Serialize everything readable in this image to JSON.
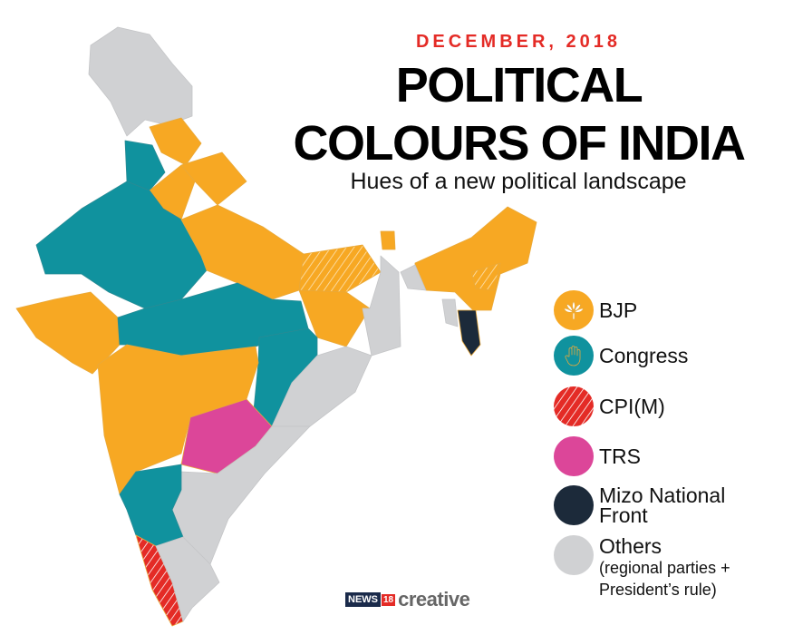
{
  "header": {
    "date": "DECEMBER, 2018",
    "title_line1": "POLITICAL",
    "title_line2": "COLOURS OF INDIA",
    "subtitle": "Hues of a new political landscape"
  },
  "legend": [
    {
      "label": "BJP",
      "color": "#f7a823",
      "icon": "lotus-icon"
    },
    {
      "label": "Congress",
      "color": "#10929e",
      "icon": "hand-icon"
    },
    {
      "label": "CPI(M)",
      "color": "#e42b26",
      "pattern": "hatched"
    },
    {
      "label": "TRS",
      "color": "#dc4699"
    },
    {
      "label": "Mizo National Front",
      "color": "#1c2a3a"
    },
    {
      "label": "Others",
      "note": "(regional parties + President’s rule)",
      "color": "#d0d1d3"
    }
  ],
  "logo": {
    "brand": "NEWS",
    "number": "18",
    "suffix": "creative"
  }
}
